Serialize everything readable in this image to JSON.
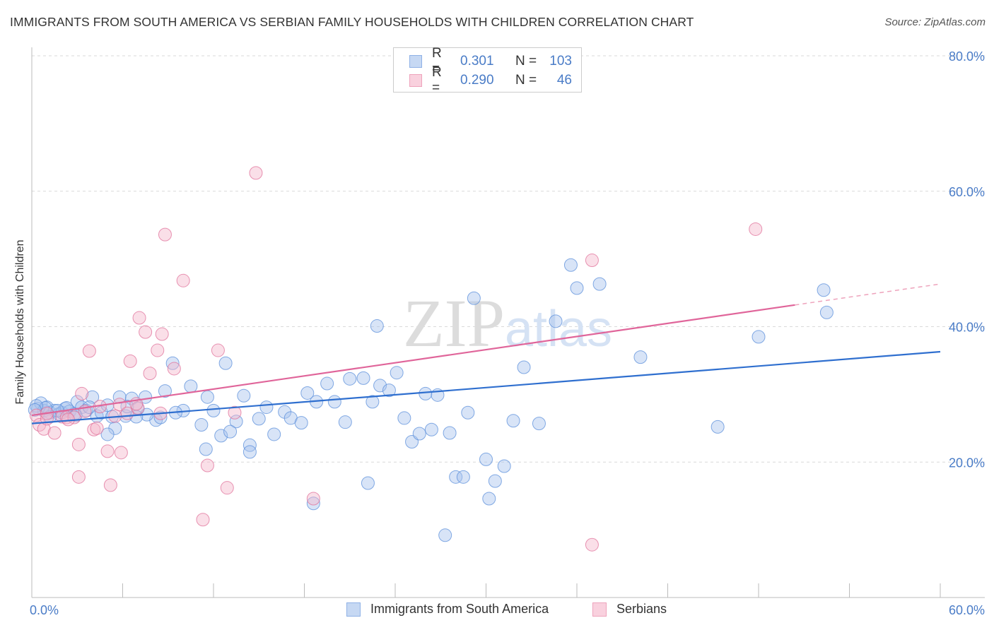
{
  "title": "IMMIGRANTS FROM SOUTH AMERICA VS SERBIAN FAMILY HOUSEHOLDS WITH CHILDREN CORRELATION CHART",
  "source": "Source: ZipAtlas.com",
  "watermark": "ZIPatlas",
  "legend": {
    "rows": [
      {
        "r_label": "R =",
        "r_value": "0.301",
        "n_label": "N =",
        "n_value": "103",
        "color": "#a9c4ee"
      },
      {
        "r_label": "R =",
        "r_value": "0.290",
        "n_label": "N =",
        "n_value": "46",
        "color": "#f4b8cb"
      }
    ]
  },
  "bottom_legend": [
    {
      "label": "Immigrants from South America",
      "color": "#a9c4ee"
    },
    {
      "label": "Serbians",
      "color": "#f4b8cb"
    }
  ],
  "chart_data": {
    "type": "scatter",
    "title": "IMMIGRANTS FROM SOUTH AMERICA VS SERBIAN FAMILY HOUSEHOLDS WITH CHILDREN CORRELATION CHART",
    "xlabel": "",
    "ylabel": "Family Households with Children",
    "xlim": [
      0,
      60
    ],
    "ylim": [
      0,
      80
    ],
    "x_tick_labels": [
      "0.0%",
      "60.0%"
    ],
    "y_ticks": [
      20,
      40,
      60,
      80
    ],
    "y_tick_labels": [
      "20.0%",
      "40.0%",
      "60.0%",
      "80.0%"
    ],
    "grid": true,
    "series": [
      {
        "name": "Immigrants from South America",
        "color": "#5b8fdb",
        "fill": "#a9c4ee",
        "trend": {
          "x": [
            0,
            60
          ],
          "y": [
            25.7,
            36.3
          ]
        },
        "points": [
          [
            0.4,
            27.9
          ],
          [
            0.6,
            28.7
          ],
          [
            0.8,
            27.6
          ],
          [
            1.0,
            28.1
          ],
          [
            1.2,
            27.3
          ],
          [
            1.5,
            27.6
          ],
          [
            1.8,
            27.1
          ],
          [
            2.0,
            27.3
          ],
          [
            2.2,
            27.9
          ],
          [
            2.5,
            27.5
          ],
          [
            2.8,
            27.1
          ],
          [
            3.0,
            28.9
          ],
          [
            3.3,
            28.1
          ],
          [
            3.6,
            27.6
          ],
          [
            4.0,
            29.6
          ],
          [
            4.3,
            26.8
          ],
          [
            4.6,
            27.3
          ],
          [
            5.0,
            28.4
          ],
          [
            5.3,
            26.7
          ],
          [
            5.8,
            29.6
          ],
          [
            6.2,
            26.8
          ],
          [
            6.6,
            29.4
          ],
          [
            7.0,
            27.9
          ],
          [
            7.5,
            29.6
          ],
          [
            8.2,
            26.2
          ],
          [
            8.8,
            30.5
          ],
          [
            9.3,
            34.6
          ],
          [
            10.0,
            27.6
          ],
          [
            10.5,
            31.2
          ],
          [
            11.2,
            25.5
          ],
          [
            11.6,
            29.6
          ],
          [
            12.0,
            27.6
          ],
          [
            12.5,
            23.9
          ],
          [
            12.8,
            34.6
          ],
          [
            13.5,
            26.0
          ],
          [
            14.0,
            29.8
          ],
          [
            14.4,
            22.5
          ],
          [
            15.0,
            26.4
          ],
          [
            15.5,
            28.1
          ],
          [
            16.0,
            24.1
          ],
          [
            16.7,
            27.4
          ],
          [
            17.1,
            26.5
          ],
          [
            17.8,
            25.8
          ],
          [
            18.2,
            30.2
          ],
          [
            18.8,
            28.9
          ],
          [
            19.5,
            31.6
          ],
          [
            20.0,
            28.9
          ],
          [
            20.7,
            25.9
          ],
          [
            21.0,
            32.3
          ],
          [
            21.9,
            32.4
          ],
          [
            22.5,
            28.9
          ],
          [
            22.8,
            40.1
          ],
          [
            23.0,
            31.3
          ],
          [
            23.6,
            30.6
          ],
          [
            24.1,
            33.2
          ],
          [
            24.6,
            26.5
          ],
          [
            25.1,
            23.0
          ],
          [
            25.6,
            24.2
          ],
          [
            26.0,
            30.1
          ],
          [
            26.4,
            24.8
          ],
          [
            26.8,
            29.9
          ],
          [
            27.6,
            24.3
          ],
          [
            28.0,
            17.8
          ],
          [
            28.5,
            17.8
          ],
          [
            28.8,
            27.3
          ],
          [
            29.2,
            44.2
          ],
          [
            30.0,
            20.4
          ],
          [
            30.6,
            17.2
          ],
          [
            31.2,
            19.4
          ],
          [
            31.8,
            26.1
          ],
          [
            32.5,
            34.0
          ],
          [
            33.5,
            25.7
          ],
          [
            34.6,
            40.8
          ],
          [
            35.6,
            49.1
          ],
          [
            36.0,
            45.7
          ],
          [
            37.5,
            46.3
          ],
          [
            40.2,
            35.5
          ],
          [
            45.3,
            25.2
          ],
          [
            48.0,
            38.5
          ],
          [
            52.5,
            42.1
          ],
          [
            52.3,
            45.4
          ],
          [
            30.2,
            14.6
          ],
          [
            22.2,
            16.9
          ],
          [
            18.6,
            13.9
          ],
          [
            27.3,
            9.2
          ],
          [
            14.4,
            21.5
          ],
          [
            13.1,
            24.5
          ],
          [
            11.5,
            21.9
          ],
          [
            9.5,
            27.3
          ],
          [
            8.5,
            26.6
          ],
          [
            7.6,
            27.0
          ],
          [
            6.9,
            26.7
          ],
          [
            6.3,
            28.2
          ],
          [
            5.5,
            25.0
          ],
          [
            5.0,
            24.1
          ],
          [
            3.8,
            28.1
          ],
          [
            2.9,
            26.9
          ],
          [
            2.3,
            28.0
          ],
          [
            1.7,
            27.6
          ],
          [
            1.2,
            26.7
          ],
          [
            0.9,
            28.0
          ],
          [
            0.3,
            28.3
          ],
          [
            0.2,
            27.7
          ]
        ]
      },
      {
        "name": "Serbians",
        "color": "#e07099",
        "fill": "#f4b8cb",
        "trend": {
          "x": [
            0,
            50.4
          ],
          "y": [
            26.9,
            43.2
          ]
        },
        "trend_dashed": {
          "x": [
            50.4,
            60
          ],
          "y": [
            43.2,
            46.3
          ]
        },
        "points": [
          [
            0.3,
            26.9
          ],
          [
            0.5,
            25.5
          ],
          [
            0.8,
            24.9
          ],
          [
            1.0,
            26.4
          ],
          [
            1.5,
            24.3
          ],
          [
            2.0,
            26.7
          ],
          [
            2.3,
            26.6
          ],
          [
            2.8,
            26.6
          ],
          [
            3.1,
            22.6
          ],
          [
            3.3,
            30.1
          ],
          [
            3.5,
            27.5
          ],
          [
            3.8,
            36.4
          ],
          [
            4.1,
            24.8
          ],
          [
            4.3,
            25.0
          ],
          [
            4.5,
            28.2
          ],
          [
            5.0,
            21.6
          ],
          [
            5.2,
            16.6
          ],
          [
            5.8,
            28.5
          ],
          [
            5.9,
            21.4
          ],
          [
            6.3,
            27.2
          ],
          [
            6.5,
            34.9
          ],
          [
            7.0,
            28.0
          ],
          [
            7.1,
            41.3
          ],
          [
            7.5,
            39.2
          ],
          [
            7.8,
            33.1
          ],
          [
            8.3,
            36.5
          ],
          [
            8.5,
            27.2
          ],
          [
            8.6,
            38.9
          ],
          [
            8.8,
            53.6
          ],
          [
            9.4,
            33.8
          ],
          [
            10.0,
            46.8
          ],
          [
            11.3,
            11.5
          ],
          [
            11.6,
            19.5
          ],
          [
            12.3,
            36.5
          ],
          [
            12.9,
            16.2
          ],
          [
            13.4,
            27.3
          ],
          [
            14.8,
            62.7
          ],
          [
            18.6,
            14.6
          ],
          [
            37.0,
            49.8
          ],
          [
            37.0,
            7.8
          ],
          [
            47.8,
            54.4
          ],
          [
            3.1,
            17.8
          ],
          [
            1.0,
            27.2
          ],
          [
            2.4,
            26.3
          ],
          [
            5.5,
            26.8
          ],
          [
            6.9,
            28.6
          ]
        ]
      }
    ]
  }
}
